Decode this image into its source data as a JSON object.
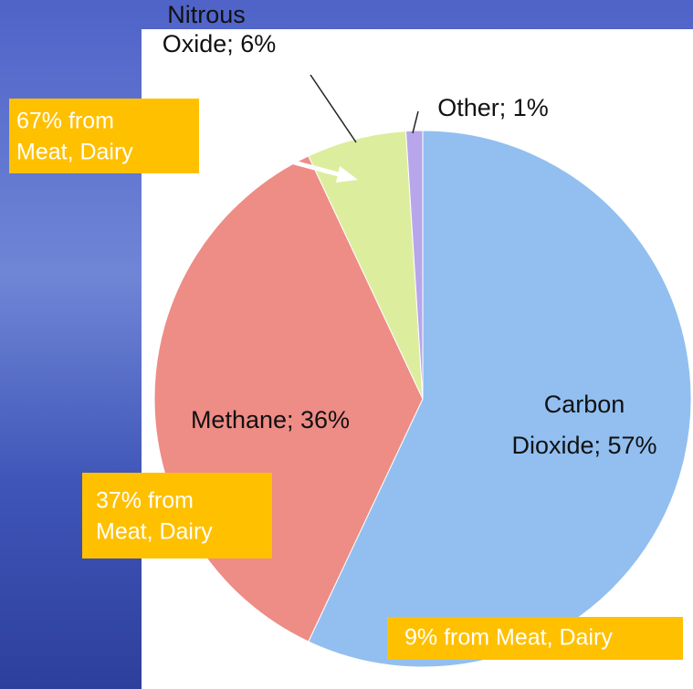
{
  "chart_data": {
    "type": "pie",
    "values": [
      57,
      36,
      6,
      1
    ],
    "labels": [
      [
        "Carbon",
        "Dioxide; 57%"
      ],
      [
        "Methane; 36%"
      ],
      [
        "Nitrous",
        "Oxide; 6%"
      ],
      [
        "Other; 1%"
      ]
    ],
    "colors": [
      "#92bff0",
      "#ee8c86",
      "#dcee9e",
      "#b7a6ea"
    ],
    "annotations": [
      [
        "67% from",
        "Meat, Dairy"
      ],
      [
        "37% from",
        "Meat, Dairy"
      ],
      [
        "9% from Meat, Dairy"
      ]
    ]
  }
}
